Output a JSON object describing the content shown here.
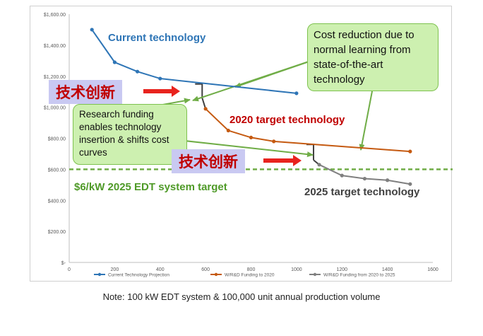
{
  "chart_data": {
    "type": "line",
    "xlim": [
      0,
      1600
    ],
    "ylim": [
      0,
      1600
    ],
    "x_ticks": [
      "0",
      "200",
      "400",
      "600",
      "800",
      "1000",
      "1200",
      "1400",
      "1600"
    ],
    "y_ticks": [
      "$-",
      "$200.00",
      "$400.00",
      "$600.00",
      "$800.00",
      "$1,000.00",
      "$1,200.00",
      "$1,400.00",
      "$1,600.00"
    ],
    "grid": false,
    "legend_position": "bottom",
    "series": [
      {
        "name": "Current Technology Projection",
        "color": "#2e75b6",
        "x": [
          100,
          200,
          300,
          400,
          1000
        ],
        "y": [
          1500,
          1290,
          1230,
          1185,
          1090
        ]
      },
      {
        "name": "W/R&D Funding to 2020",
        "color": "#c55a11",
        "x": [
          600,
          700,
          800,
          900,
          1500
        ],
        "y": [
          990,
          850,
          805,
          780,
          715
        ]
      },
      {
        "name": "W/R&D Funding from 2020 to 2025",
        "color": "#7f7f7f",
        "x": [
          1100,
          1200,
          1300,
          1400,
          1500
        ],
        "y": [
          630,
          560,
          540,
          530,
          505
        ]
      }
    ],
    "target_line": {
      "y": 600,
      "label": "$6/kW 2025 EDT system target",
      "color": "#70ad47"
    },
    "annotations": {
      "current_tech": "Current technology",
      "target_2020": "2020 target technology",
      "target_2025": "2025 target technology",
      "learning": "Cost reduction due to normal learning from state-of-the-art technology",
      "funding": "Research funding enables technology insertion & shifts cost curves",
      "innovation_1": "技术创新",
      "innovation_2": "技术创新"
    }
  },
  "note": "Note: 100 kW EDT system & 100,000 unit annual production volume"
}
